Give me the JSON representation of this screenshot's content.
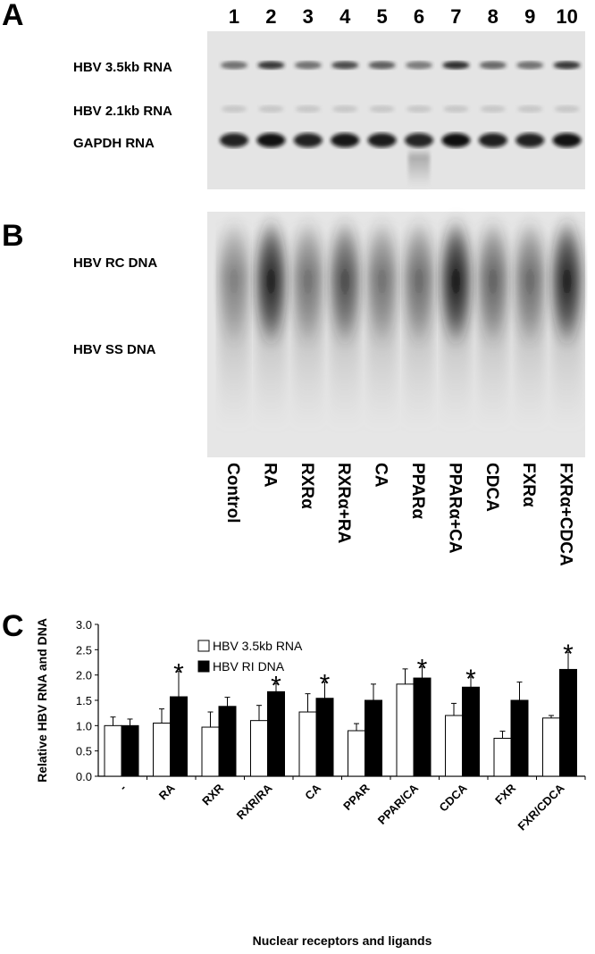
{
  "panels": {
    "a": "A",
    "b": "B",
    "c": "C"
  },
  "lane_numbers": [
    "1",
    "2",
    "3",
    "4",
    "5",
    "6",
    "7",
    "8",
    "9",
    "10"
  ],
  "rna_bands": [
    "HBV 3.5kb RNA",
    "HBV 2.1kb RNA",
    "GAPDH RNA"
  ],
  "dna_bands": [
    "HBV RC DNA",
    "HBV SS DNA"
  ],
  "lane_labels": [
    "Control",
    "RA",
    "RXRα",
    "RXRα+RA",
    "CA",
    "PPARα",
    "PPARα+CA",
    "CDCA",
    "FXRα",
    "FXRα+CDCA"
  ],
  "chart_data": {
    "type": "bar",
    "y_label": "Relative HBV RNA and DNA",
    "x_label": "Nuclear receptors and ligands",
    "categories": [
      "-",
      "RA",
      "RXR",
      "RXR/RA",
      "CA",
      "PPAR",
      "PPAR/CA",
      "CDCA",
      "FXR",
      "FXR/CDCA"
    ],
    "series": [
      {
        "name": "HBV 3.5kb RNA",
        "color": "#ffffff",
        "values": [
          1.0,
          1.05,
          0.97,
          1.1,
          1.27,
          0.9,
          1.82,
          1.2,
          0.75,
          1.15
        ],
        "errors": [
          0.17,
          0.28,
          0.3,
          0.3,
          0.36,
          0.14,
          0.3,
          0.24,
          0.14,
          0.05
        ]
      },
      {
        "name": "HBV RI DNA",
        "color": "#000000",
        "values": [
          1.0,
          1.57,
          1.38,
          1.67,
          1.54,
          1.5,
          1.94,
          1.76,
          1.5,
          2.11
        ],
        "errors": [
          0.13,
          0.5,
          0.18,
          0.16,
          0.32,
          0.32,
          0.22,
          0.2,
          0.36,
          0.34
        ],
        "annotations": [
          null,
          "*",
          null,
          "*",
          "*",
          null,
          "*",
          "*",
          null,
          "*"
        ]
      }
    ],
    "ylim": [
      0,
      3
    ],
    "yticks": [
      {
        "value": 0,
        "label": "0.0"
      },
      {
        "value": 0.5,
        "label": "0.5"
      },
      {
        "value": 1,
        "label": "1.0"
      },
      {
        "value": 1.5,
        "label": "1.5"
      },
      {
        "value": 2,
        "label": "2.0"
      },
      {
        "value": 2.5,
        "label": "2.5"
      },
      {
        "value": 3,
        "label": "3.0"
      }
    ],
    "legend": "upper-left",
    "grid": false
  }
}
